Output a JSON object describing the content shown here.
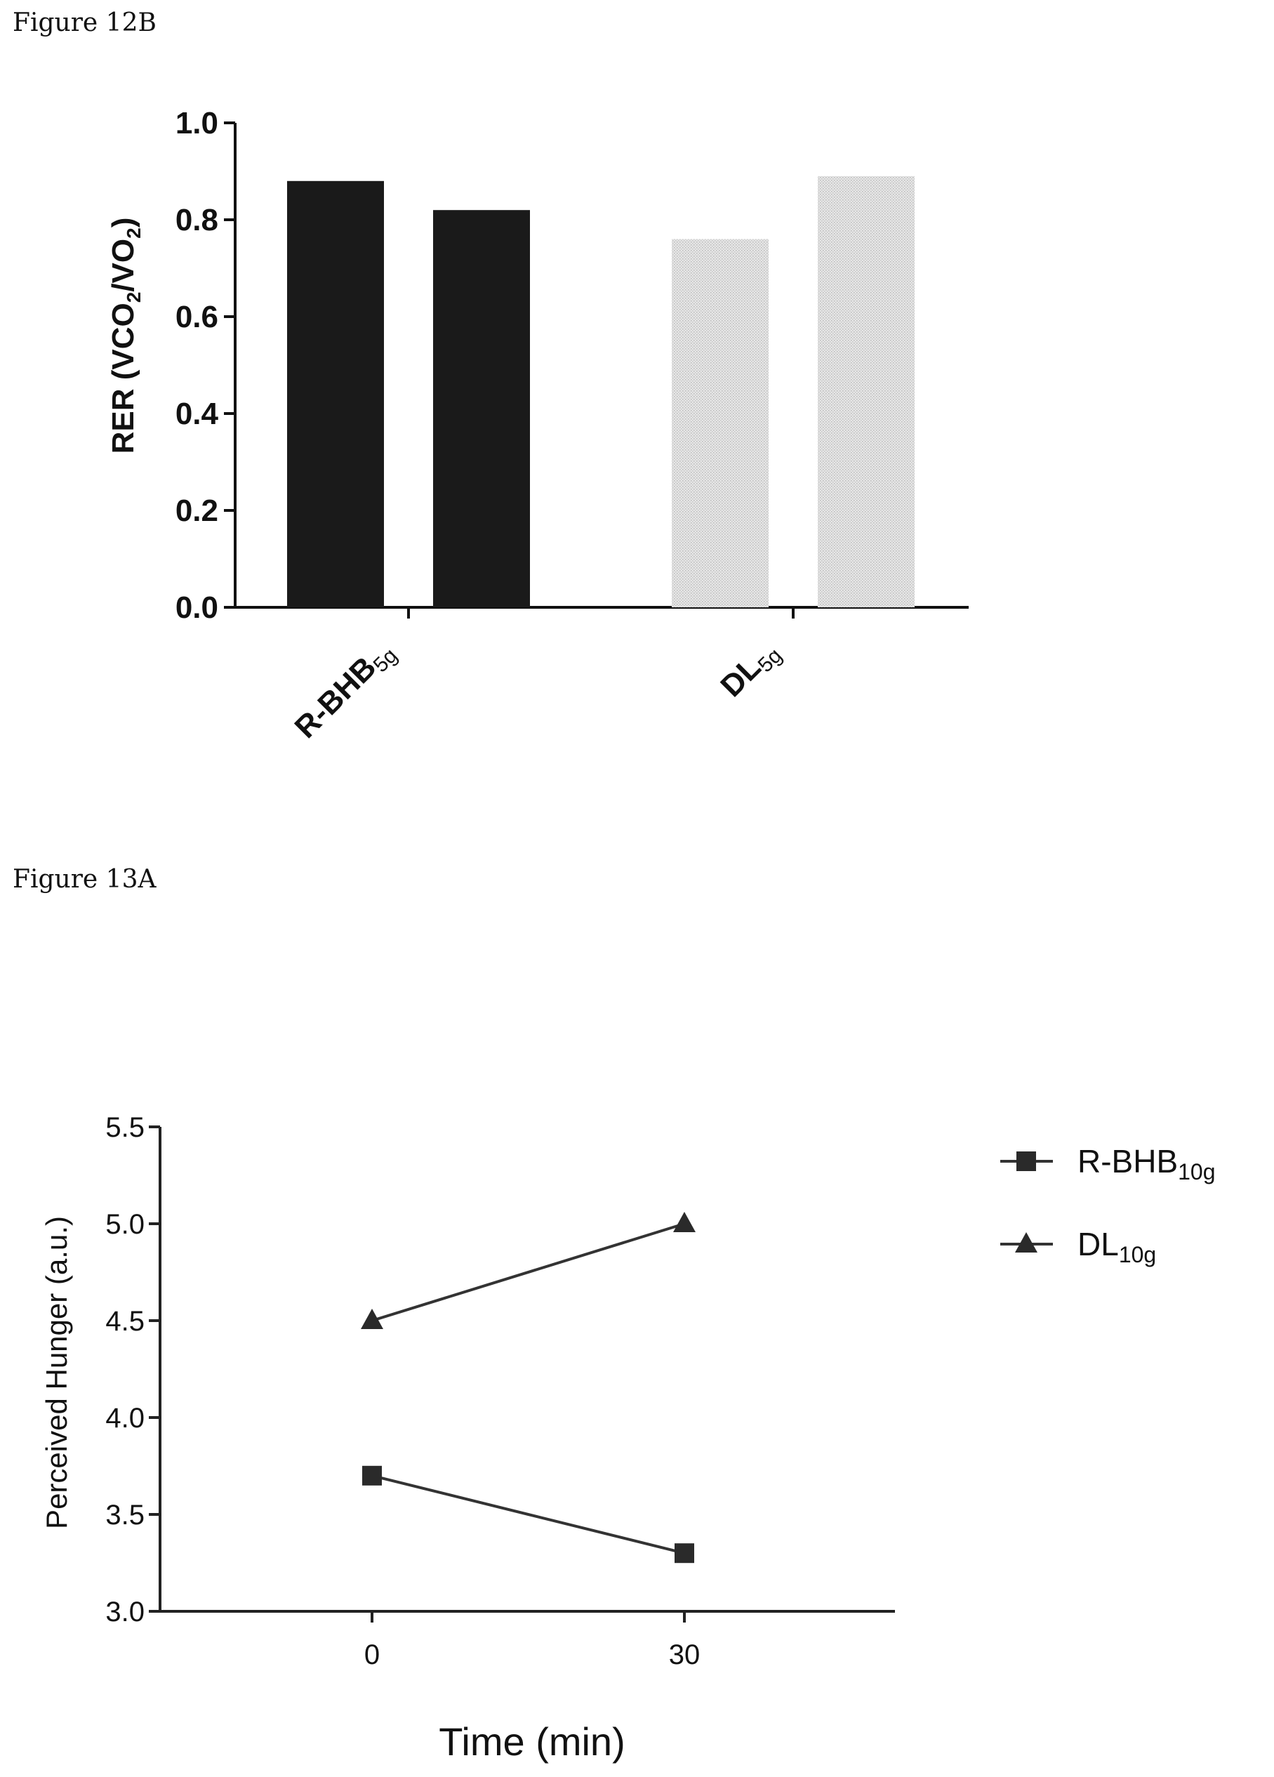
{
  "chart_data": [
    {
      "type": "bar",
      "figure_label": "Figure 12B",
      "ylabel_main": "RER (VCO",
      "ylabel_sub1": "2",
      "ylabel_mid": "/VO",
      "ylabel_sub2": "2",
      "ylabel_end": ")",
      "ylim": [
        0,
        1.0
      ],
      "yticks": [
        "0.0",
        "0.2",
        "0.4",
        "0.6",
        "0.8",
        "1.0"
      ],
      "categories": [
        {
          "label": "R-BHB",
          "subscript": "5g"
        },
        {
          "label": "DL",
          "subscript": "5g"
        }
      ],
      "bars": [
        {
          "category": 0,
          "value": 0.88,
          "color": "#1a1a1a"
        },
        {
          "category": 0,
          "value": 0.82,
          "color": "#1a1a1a"
        },
        {
          "category": 1,
          "value": 0.76,
          "color": "#d9d9d9"
        },
        {
          "category": 1,
          "value": 0.89,
          "color": "#d9d9d9"
        }
      ]
    },
    {
      "type": "line",
      "figure_label": "Figure 13A",
      "xlabel": "Time (min)",
      "ylabel": "Perceived Hunger (a.u.)",
      "ylim": [
        3.0,
        5.5
      ],
      "yticks": [
        "3.0",
        "3.5",
        "4.0",
        "4.5",
        "5.0",
        "5.5"
      ],
      "x": [
        0,
        30
      ],
      "xticks": [
        "0",
        "30"
      ],
      "series": [
        {
          "name": "R-BHB",
          "subscript": "10g",
          "marker": "square",
          "values": [
            3.7,
            3.3
          ]
        },
        {
          "name": "DL",
          "subscript": "10g",
          "marker": "triangle",
          "values": [
            4.5,
            5.0
          ]
        }
      ]
    }
  ]
}
